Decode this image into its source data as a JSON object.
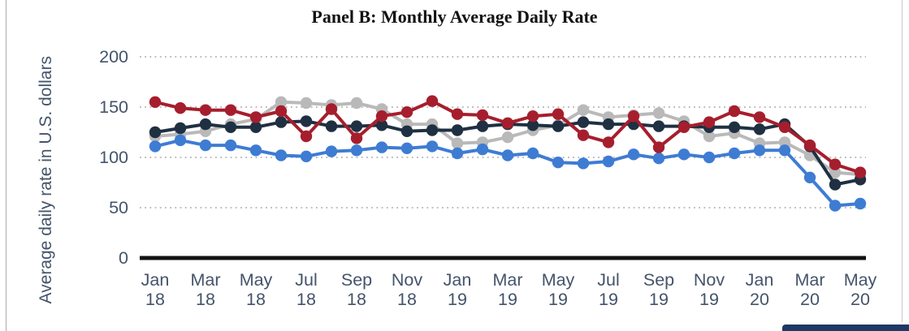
{
  "chart_data": {
    "type": "line",
    "title": "Panel B: Monthly Average Daily Rate",
    "ylabel": "Average daily rate in U.S. dollars",
    "xlabel": "",
    "ylim": [
      0,
      200
    ],
    "yticks": [
      0,
      50,
      100,
      150,
      200
    ],
    "grid": "dotted horizontal at 50,100,150,200",
    "legend": "none",
    "months": [
      "Jan 18",
      "Feb 18",
      "Mar 18",
      "Apr 18",
      "May 18",
      "Jun 18",
      "Jul 18",
      "Aug 18",
      "Sep 18",
      "Oct 18",
      "Nov 18",
      "Dec 18",
      "Jan 19",
      "Feb 19",
      "Mar 19",
      "Apr 19",
      "May 19",
      "Jun 19",
      "Jul 19",
      "Aug 19",
      "Sep 19",
      "Oct 19",
      "Nov 19",
      "Dec 19",
      "Jan 20",
      "Feb 20",
      "Mar 20",
      "Apr 20",
      "May 20"
    ],
    "x_tick_labels": [
      "Jan 18",
      "Mar 18",
      "May 18",
      "Jul 18",
      "Sep 18",
      "Nov 18",
      "Jan 19",
      "Mar 19",
      "May 19",
      "Jul 19",
      "Sep 19",
      "Nov 19",
      "Jan 20",
      "Mar 20",
      "May 20"
    ],
    "series": [
      {
        "name": "gray",
        "color": "#b9b9b9",
        "values": [
          121,
          123,
          126,
          133,
          138,
          155,
          154,
          152,
          154,
          148,
          133,
          133,
          114,
          115,
          120,
          127,
          132,
          147,
          140,
          142,
          144,
          136,
          121,
          124,
          114,
          115,
          102,
          85,
          83
        ]
      },
      {
        "name": "navy",
        "color": "#1f3042",
        "values": [
          125,
          129,
          133,
          130,
          130,
          135,
          136,
          131,
          131,
          132,
          126,
          127,
          127,
          131,
          133,
          132,
          131,
          135,
          133,
          133,
          131,
          131,
          130,
          130,
          128,
          133,
          111,
          73,
          78
        ]
      },
      {
        "name": "blue",
        "color": "#3e7cd3",
        "values": [
          111,
          117,
          112,
          112,
          107,
          102,
          101,
          106,
          107,
          110,
          109,
          111,
          104,
          108,
          102,
          104,
          95,
          94,
          96,
          103,
          99,
          103,
          100,
          104,
          107,
          107,
          80,
          52,
          54
        ]
      },
      {
        "name": "dark-red",
        "color": "#a61e2d",
        "values": [
          155,
          149,
          147,
          147,
          140,
          146,
          121,
          148,
          119,
          141,
          145,
          156,
          143,
          142,
          134,
          141,
          143,
          122,
          115,
          141,
          110,
          130,
          135,
          146,
          140,
          130,
          112,
          93,
          85
        ]
      }
    ],
    "theme": {
      "tick_label_color": "#44546a",
      "title_color": "#121212",
      "gridline_color": "#a6a6a6",
      "axis_color": "#111111",
      "page_border_color": "#ababab",
      "corner_bar_color": "#1f3864"
    }
  }
}
